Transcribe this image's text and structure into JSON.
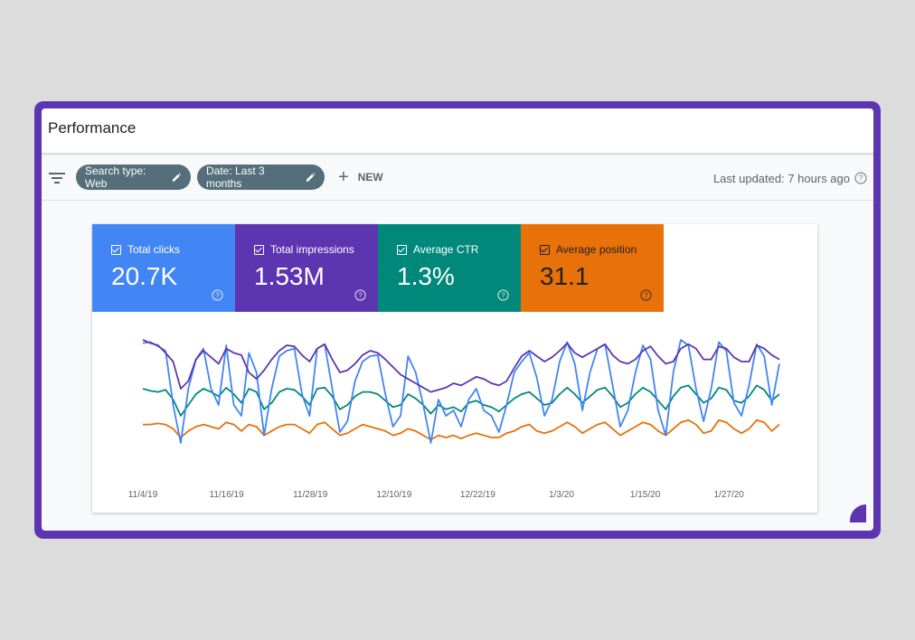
{
  "title": "Performance",
  "toolbar": {
    "filter_icon": "filter-list-icon",
    "chips": [
      {
        "label": "Search type: Web"
      },
      {
        "label": "Date: Last 3 months"
      }
    ],
    "new_label": "NEW",
    "last_updated": "Last updated: 7 hours ago"
  },
  "metrics": [
    {
      "label": "Total clicks",
      "value": "20.7K",
      "color": "#4285f4"
    },
    {
      "label": "Total impressions",
      "value": "1.53M",
      "color": "#5e35b1"
    },
    {
      "label": "Average CTR",
      "value": "1.3%",
      "color": "#00897b"
    },
    {
      "label": "Average position",
      "value": "31.1",
      "color": "#e8710a"
    }
  ],
  "chart_data": {
    "type": "line",
    "x_tick_labels": [
      "11/4/19",
      "11/16/19",
      "11/28/19",
      "12/10/19",
      "12/22/19",
      "1/3/20",
      "1/15/20",
      "1/27/20"
    ],
    "series": [
      {
        "name": "Total clicks",
        "color": "#4285f4",
        "values": [
          0.97,
          0.98,
          0.94,
          0.9,
          0.4,
          0.05,
          0.55,
          0.82,
          0.92,
          0.55,
          0.4,
          0.95,
          0.4,
          0.3,
          0.88,
          0.7,
          0.12,
          0.55,
          0.85,
          0.9,
          0.92,
          0.5,
          0.3,
          0.92,
          0.96,
          0.55,
          0.15,
          0.25,
          0.62,
          0.8,
          0.85,
          0.86,
          0.5,
          0.2,
          0.3,
          0.85,
          0.7,
          0.4,
          0.05,
          0.45,
          0.3,
          0.35,
          0.2,
          0.45,
          0.55,
          0.35,
          0.3,
          0.15,
          0.4,
          0.7,
          0.8,
          0.88,
          0.65,
          0.3,
          0.45,
          0.8,
          0.98,
          0.78,
          0.35,
          0.7,
          0.92,
          0.96,
          0.58,
          0.2,
          0.35,
          0.7,
          0.95,
          0.82,
          0.35,
          0.12,
          0.7,
          1.0,
          0.95,
          0.55,
          0.25,
          0.55,
          0.98,
          0.9,
          0.42,
          0.3,
          0.58,
          0.96,
          0.85,
          0.4,
          0.78
        ]
      },
      {
        "name": "Total impressions",
        "color": "#5e35b1",
        "values": [
          1.0,
          0.97,
          0.95,
          0.88,
          0.8,
          0.55,
          0.62,
          0.82,
          0.9,
          0.84,
          0.78,
          0.92,
          0.88,
          0.86,
          0.7,
          0.64,
          0.72,
          0.82,
          0.9,
          0.95,
          0.94,
          0.86,
          0.8,
          0.92,
          0.96,
          0.82,
          0.7,
          0.72,
          0.78,
          0.86,
          0.9,
          0.88,
          0.82,
          0.75,
          0.68,
          0.64,
          0.6,
          0.56,
          0.52,
          0.54,
          0.56,
          0.6,
          0.58,
          0.62,
          0.66,
          0.64,
          0.6,
          0.58,
          0.62,
          0.74,
          0.85,
          0.9,
          0.85,
          0.8,
          0.84,
          0.9,
          0.97,
          0.88,
          0.84,
          0.88,
          0.92,
          0.96,
          0.86,
          0.8,
          0.78,
          0.82,
          0.9,
          0.94,
          0.85,
          0.78,
          0.8,
          0.92,
          0.96,
          0.92,
          0.82,
          0.82,
          0.94,
          0.92,
          0.84,
          0.8,
          0.8,
          0.95,
          0.92,
          0.86,
          0.82
        ]
      },
      {
        "name": "Average CTR",
        "color": "#00897b",
        "values": [
          0.55,
          0.53,
          0.52,
          0.54,
          0.45,
          0.3,
          0.4,
          0.5,
          0.55,
          0.52,
          0.48,
          0.56,
          0.5,
          0.42,
          0.55,
          0.52,
          0.36,
          0.42,
          0.52,
          0.55,
          0.54,
          0.48,
          0.4,
          0.55,
          0.56,
          0.48,
          0.36,
          0.4,
          0.48,
          0.52,
          0.52,
          0.5,
          0.44,
          0.38,
          0.4,
          0.5,
          0.46,
          0.4,
          0.32,
          0.4,
          0.36,
          0.38,
          0.34,
          0.42,
          0.44,
          0.4,
          0.38,
          0.34,
          0.4,
          0.46,
          0.5,
          0.52,
          0.46,
          0.4,
          0.42,
          0.5,
          0.56,
          0.5,
          0.42,
          0.48,
          0.54,
          0.56,
          0.48,
          0.38,
          0.42,
          0.5,
          0.56,
          0.52,
          0.44,
          0.36,
          0.48,
          0.56,
          0.58,
          0.5,
          0.42,
          0.46,
          0.56,
          0.54,
          0.44,
          0.42,
          0.48,
          0.58,
          0.54,
          0.44,
          0.5
        ]
      },
      {
        "name": "Average position",
        "color": "#e8710a",
        "values": [
          0.22,
          0.22,
          0.23,
          0.22,
          0.18,
          0.1,
          0.16,
          0.2,
          0.22,
          0.2,
          0.18,
          0.24,
          0.22,
          0.16,
          0.22,
          0.2,
          0.12,
          0.16,
          0.2,
          0.22,
          0.22,
          0.18,
          0.14,
          0.22,
          0.24,
          0.18,
          0.12,
          0.14,
          0.18,
          0.22,
          0.2,
          0.18,
          0.16,
          0.12,
          0.14,
          0.18,
          0.16,
          0.12,
          0.08,
          0.12,
          0.1,
          0.12,
          0.09,
          0.12,
          0.14,
          0.12,
          0.1,
          0.1,
          0.14,
          0.16,
          0.2,
          0.22,
          0.16,
          0.14,
          0.16,
          0.2,
          0.24,
          0.2,
          0.14,
          0.18,
          0.22,
          0.24,
          0.18,
          0.12,
          0.16,
          0.2,
          0.24,
          0.22,
          0.16,
          0.12,
          0.18,
          0.24,
          0.26,
          0.22,
          0.14,
          0.16,
          0.26,
          0.24,
          0.18,
          0.14,
          0.18,
          0.26,
          0.24,
          0.16,
          0.22
        ]
      }
    ],
    "grid": false,
    "legend": "none"
  }
}
